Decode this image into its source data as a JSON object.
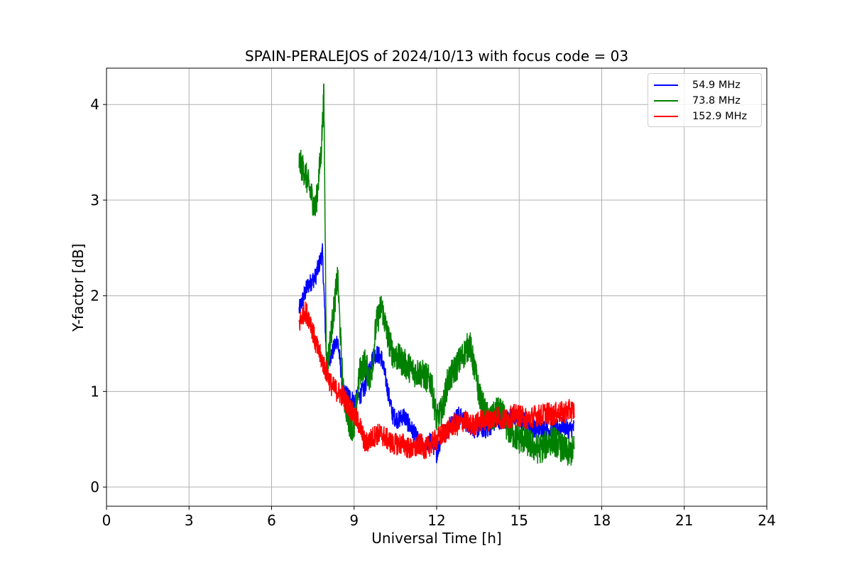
{
  "chart_data": {
    "type": "line",
    "title": "SPAIN-PERALEJOS of 2024/10/13 with focus code = 03",
    "xlabel": "Universal Time [h]",
    "ylabel": "Y-factor [dB]",
    "xlim": [
      0,
      24
    ],
    "ylim": [
      -0.2,
      4.38
    ],
    "xticks": [
      0,
      3,
      6,
      9,
      12,
      15,
      18,
      21,
      24
    ],
    "yticks": [
      0,
      1,
      2,
      3,
      4
    ],
    "grid": true,
    "legend_position": "top-right",
    "series": [
      {
        "name": "54.9 MHz",
        "color": "#0000ff",
        "x": [
          7.0,
          7.3,
          7.6,
          7.85,
          8.0,
          8.2,
          8.4,
          8.6,
          8.8,
          9.0,
          9.2,
          9.4,
          9.6,
          9.8,
          10.0,
          10.2,
          10.4,
          10.6,
          10.8,
          11.0,
          11.2,
          11.4,
          11.6,
          11.8,
          12.0,
          12.2,
          12.4,
          12.6,
          12.8,
          13.0,
          13.2,
          13.4,
          13.6,
          13.8,
          14.0,
          14.2,
          14.4,
          14.6,
          14.8,
          15.0,
          15.2,
          15.4,
          15.6,
          15.8,
          16.0,
          16.2,
          16.4,
          16.6,
          16.8,
          17.0
        ],
        "y": [
          1.85,
          2.1,
          2.2,
          2.45,
          1.3,
          1.4,
          1.55,
          1.0,
          0.95,
          0.9,
          0.95,
          1.05,
          1.3,
          1.4,
          1.35,
          1.05,
          0.75,
          0.7,
          0.75,
          0.65,
          0.55,
          0.45,
          0.4,
          0.5,
          0.35,
          0.55,
          0.6,
          0.7,
          0.75,
          0.7,
          0.65,
          0.6,
          0.62,
          0.6,
          0.65,
          0.7,
          0.7,
          0.72,
          0.75,
          0.7,
          0.68,
          0.65,
          0.6,
          0.62,
          0.6,
          0.6,
          0.62,
          0.65,
          0.6,
          0.62
        ],
        "noise": 0.1
      },
      {
        "name": "73.8 MHz",
        "color": "#008000",
        "x": [
          7.0,
          7.2,
          7.4,
          7.6,
          7.8,
          7.9,
          8.0,
          8.2,
          8.4,
          8.6,
          8.8,
          9.0,
          9.2,
          9.4,
          9.6,
          9.8,
          10.0,
          10.2,
          10.4,
          10.6,
          10.8,
          11.0,
          11.2,
          11.4,
          11.6,
          11.8,
          12.0,
          12.2,
          12.4,
          12.6,
          12.8,
          13.0,
          13.2,
          13.4,
          13.6,
          13.8,
          14.0,
          14.2,
          14.4,
          14.6,
          14.8,
          15.0,
          15.2,
          15.4,
          15.6,
          15.8,
          16.0,
          16.2,
          16.4,
          16.6,
          16.8,
          17.0
        ],
        "y": [
          3.4,
          3.3,
          3.1,
          2.9,
          3.5,
          4.1,
          1.2,
          1.7,
          2.2,
          1.0,
          0.7,
          0.6,
          1.2,
          1.3,
          1.1,
          1.7,
          1.9,
          1.6,
          1.4,
          1.35,
          1.3,
          1.25,
          1.2,
          1.2,
          1.15,
          1.1,
          0.7,
          0.8,
          1.1,
          1.2,
          1.3,
          1.4,
          1.5,
          1.2,
          0.9,
          0.75,
          0.7,
          0.8,
          0.75,
          0.6,
          0.55,
          0.5,
          0.5,
          0.45,
          0.4,
          0.4,
          0.45,
          0.5,
          0.45,
          0.4,
          0.35,
          0.4
        ],
        "noise": 0.16
      },
      {
        "name": "152.9 MHz",
        "color": "#ff0000",
        "x": [
          7.0,
          7.2,
          7.4,
          7.6,
          7.8,
          8.0,
          8.2,
          8.4,
          8.6,
          8.8,
          9.0,
          9.2,
          9.4,
          9.6,
          9.8,
          10.0,
          10.2,
          10.4,
          10.6,
          10.8,
          11.0,
          11.2,
          11.4,
          11.6,
          11.8,
          12.0,
          12.2,
          12.4,
          12.6,
          12.8,
          13.0,
          13.2,
          13.4,
          13.6,
          13.8,
          14.0,
          14.2,
          14.4,
          14.6,
          14.8,
          15.0,
          15.2,
          15.4,
          15.6,
          15.8,
          16.0,
          16.2,
          16.4,
          16.6,
          16.8,
          17.0
        ],
        "y": [
          1.7,
          1.85,
          1.75,
          1.5,
          1.35,
          1.2,
          1.05,
          1.0,
          0.95,
          0.85,
          0.75,
          0.65,
          0.45,
          0.5,
          0.55,
          0.55,
          0.5,
          0.45,
          0.45,
          0.45,
          0.4,
          0.4,
          0.45,
          0.4,
          0.45,
          0.5,
          0.55,
          0.6,
          0.65,
          0.65,
          0.7,
          0.65,
          0.65,
          0.7,
          0.7,
          0.7,
          0.75,
          0.7,
          0.72,
          0.75,
          0.75,
          0.72,
          0.72,
          0.75,
          0.75,
          0.78,
          0.75,
          0.78,
          0.78,
          0.8,
          0.8
        ],
        "noise": 0.12
      }
    ]
  }
}
